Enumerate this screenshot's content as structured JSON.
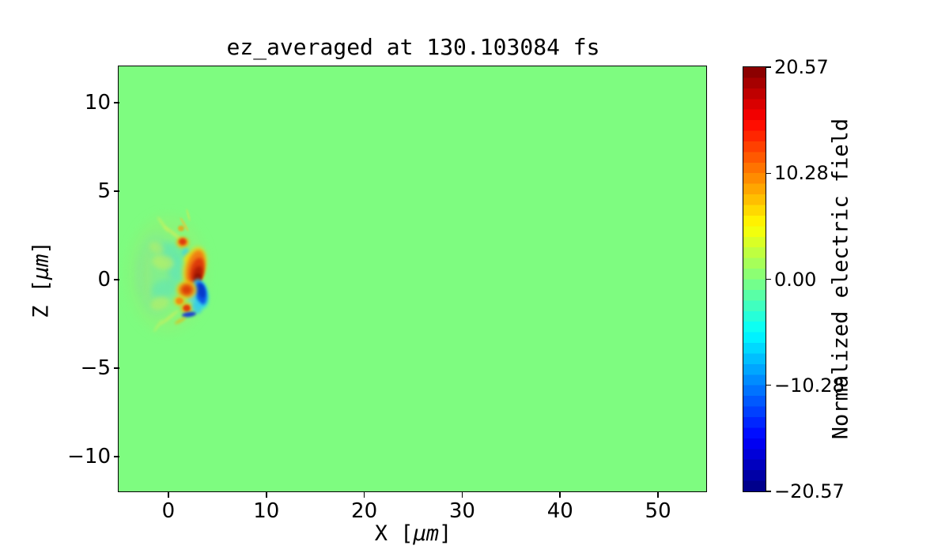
{
  "figure": {
    "background": "#ffffff"
  },
  "chart_data": {
    "type": "heatmap",
    "title": "ez_averaged at 130.103084 fs",
    "xlabel": "X [μm]",
    "ylabel": "Z [μm]",
    "xlabel_parts": {
      "prefix": "X [",
      "math": "μm",
      "suffix": "]"
    },
    "ylabel_parts": {
      "prefix": "Z [",
      "math": "μm",
      "suffix": "]"
    },
    "xlim": [
      -5,
      55
    ],
    "ylim": [
      -12,
      12
    ],
    "xticks": {
      "values": [
        0,
        10,
        20,
        30,
        40,
        50
      ],
      "labels": [
        "0",
        "10",
        "20",
        "30",
        "40",
        "50"
      ]
    },
    "yticks": {
      "values": [
        10,
        5,
        0,
        -5,
        -10
      ],
      "labels": [
        "10",
        "5",
        "0",
        "−5",
        "−10"
      ]
    },
    "grid": false,
    "colorbar": {
      "label": "Normalized electric field",
      "vmin": -20.57,
      "vmax": 20.57,
      "ticks": {
        "values": [
          20.57,
          10.28,
          0,
          -10.28,
          -20.57
        ],
        "labels": [
          "20.57",
          "10.28",
          "0.00",
          "−10.28",
          "−20.57"
        ]
      },
      "colormap": "jet",
      "bands": 40,
      "position": "right"
    },
    "field": {
      "background_value": 0.0,
      "background_color": "#7efc80",
      "note": "ez is approximately 0 over the whole domain except a localized wakefield structure near x = -4 to 4 um, z = -3 to 3 um",
      "feature_format": [
        "x_um",
        "z_um",
        "rx_um",
        "rz_um",
        "rot_deg",
        "color",
        "opacity",
        "blur_px"
      ],
      "features": [
        [
          0.01,
          0.27,
          4.04,
          3.3,
          0,
          "#96ef73",
          0.45,
          7
        ],
        [
          -1.12,
          0.27,
          2.1,
          2.32,
          0,
          "#7ee89e",
          0.5,
          6
        ],
        [
          0.33,
          1.52,
          1.29,
          0.54,
          20,
          "#52e2c4",
          0.5,
          4
        ],
        [
          -0.32,
          -0.58,
          1.37,
          0.54,
          -15,
          "#52e2c4",
          0.45,
          4
        ],
        [
          1.06,
          0.49,
          0.97,
          0.71,
          0,
          "#3fd9e6",
          0.4,
          4
        ],
        [
          -0.48,
          0.94,
          1.13,
          0.4,
          10,
          "#cdf055",
          0.5,
          3
        ],
        [
          -1.12,
          1.74,
          0.81,
          0.31,
          30,
          "#bdee60",
          0.5,
          3
        ],
        [
          -0.8,
          -1.38,
          0.97,
          0.36,
          -20,
          "#c6ef5a",
          0.5,
          3
        ],
        [
          -2.09,
          0.18,
          0.32,
          1.52,
          0,
          "#a8ec6a",
          0.35,
          4
        ],
        [
          -2.9,
          0.22,
          0.24,
          1.07,
          0,
          "#8fe98c",
          0.4,
          3
        ],
        [
          0.65,
          2.54,
          1.29,
          0.09,
          38,
          "#c9ef5c",
          0.8,
          1.5
        ],
        [
          -0.48,
          3.08,
          0.97,
          0.08,
          55,
          "#d2f158",
          0.6,
          1.5
        ],
        [
          0.17,
          -2.19,
          1.21,
          0.09,
          -38,
          "#c9ef5c",
          0.7,
          1.5
        ],
        [
          -0.96,
          -2.63,
          0.81,
          0.07,
          -55,
          "#d2f158",
          0.5,
          1.5
        ],
        [
          1.7,
          3.08,
          0.81,
          0.07,
          60,
          "#e8c838",
          0.7,
          1
        ],
        [
          2.11,
          3.61,
          0.65,
          0.06,
          75,
          "#d8e84a",
          0.6,
          1
        ],
        [
          1.38,
          2.85,
          0.32,
          0.16,
          0,
          "#f0a010",
          0.8,
          1.2
        ],
        [
          1.54,
          2.05,
          0.65,
          0.31,
          0,
          "#f2b211",
          0.9,
          2
        ],
        [
          1.54,
          2.1,
          0.4,
          0.2,
          0,
          "#e03a0e",
          1,
          1.5
        ],
        [
          1.86,
          1.47,
          0.4,
          0.27,
          0,
          "#35d2ee",
          0.7,
          2
        ],
        [
          2.27,
          1.16,
          0.57,
          0.27,
          0,
          "#e8e212",
          0.7,
          2
        ],
        [
          2.75,
          0.67,
          1.13,
          1.16,
          14,
          "#f2d60e",
          0.85,
          3
        ],
        [
          2.83,
          0.62,
          0.89,
          1.03,
          14,
          "#f07f12",
          1,
          2.5
        ],
        [
          3.0,
          0.45,
          0.69,
          0.76,
          14,
          "#dd3a0a",
          1,
          2
        ],
        [
          3.08,
          0.27,
          0.48,
          0.45,
          14,
          "#b01c03",
          1,
          2
        ],
        [
          3.08,
          0.04,
          0.36,
          0.27,
          10,
          "#8f1000",
          0.9,
          1.5
        ],
        [
          3.32,
          -0.85,
          0.81,
          0.85,
          -12,
          "#2fd9ef",
          0.9,
          2.5
        ],
        [
          3.4,
          -0.8,
          0.57,
          0.67,
          -12,
          "#0a55e6",
          1,
          2
        ],
        [
          3.48,
          -0.67,
          0.36,
          0.4,
          -12,
          "#0636c8",
          0.9,
          1.5
        ],
        [
          2.43,
          -0.94,
          0.4,
          0.45,
          -10,
          "#58c8f2",
          0.6,
          2
        ],
        [
          1.95,
          -0.62,
          1.05,
          0.49,
          0,
          "#f2c60e",
          0.8,
          2.5
        ],
        [
          1.95,
          -0.62,
          0.73,
          0.36,
          0,
          "#e6650d",
          1,
          2
        ],
        [
          1.95,
          -0.62,
          0.4,
          0.2,
          0,
          "#d93c08",
          0.9,
          1.5
        ],
        [
          1.22,
          -1.25,
          0.57,
          0.27,
          0,
          "#f2c111",
          0.8,
          2
        ],
        [
          1.22,
          -1.25,
          0.36,
          0.18,
          0,
          "#ef8c12",
          1,
          1.2
        ],
        [
          1.95,
          -1.65,
          0.61,
          0.29,
          0,
          "#f0a90f",
          0.85,
          2
        ],
        [
          1.95,
          -1.65,
          0.36,
          0.18,
          0,
          "#dd3e0c",
          1,
          1.2
        ],
        [
          3.0,
          -1.61,
          0.48,
          0.36,
          -20,
          "#31c8f0",
          0.8,
          2
        ],
        [
          2.19,
          -2.01,
          0.73,
          0.14,
          -8,
          "#1535d6",
          0.95,
          1.5
        ],
        [
          1.3,
          -2.36,
          0.65,
          0.11,
          -30,
          "#e8b80f",
          0.6,
          1.5
        ]
      ]
    }
  }
}
